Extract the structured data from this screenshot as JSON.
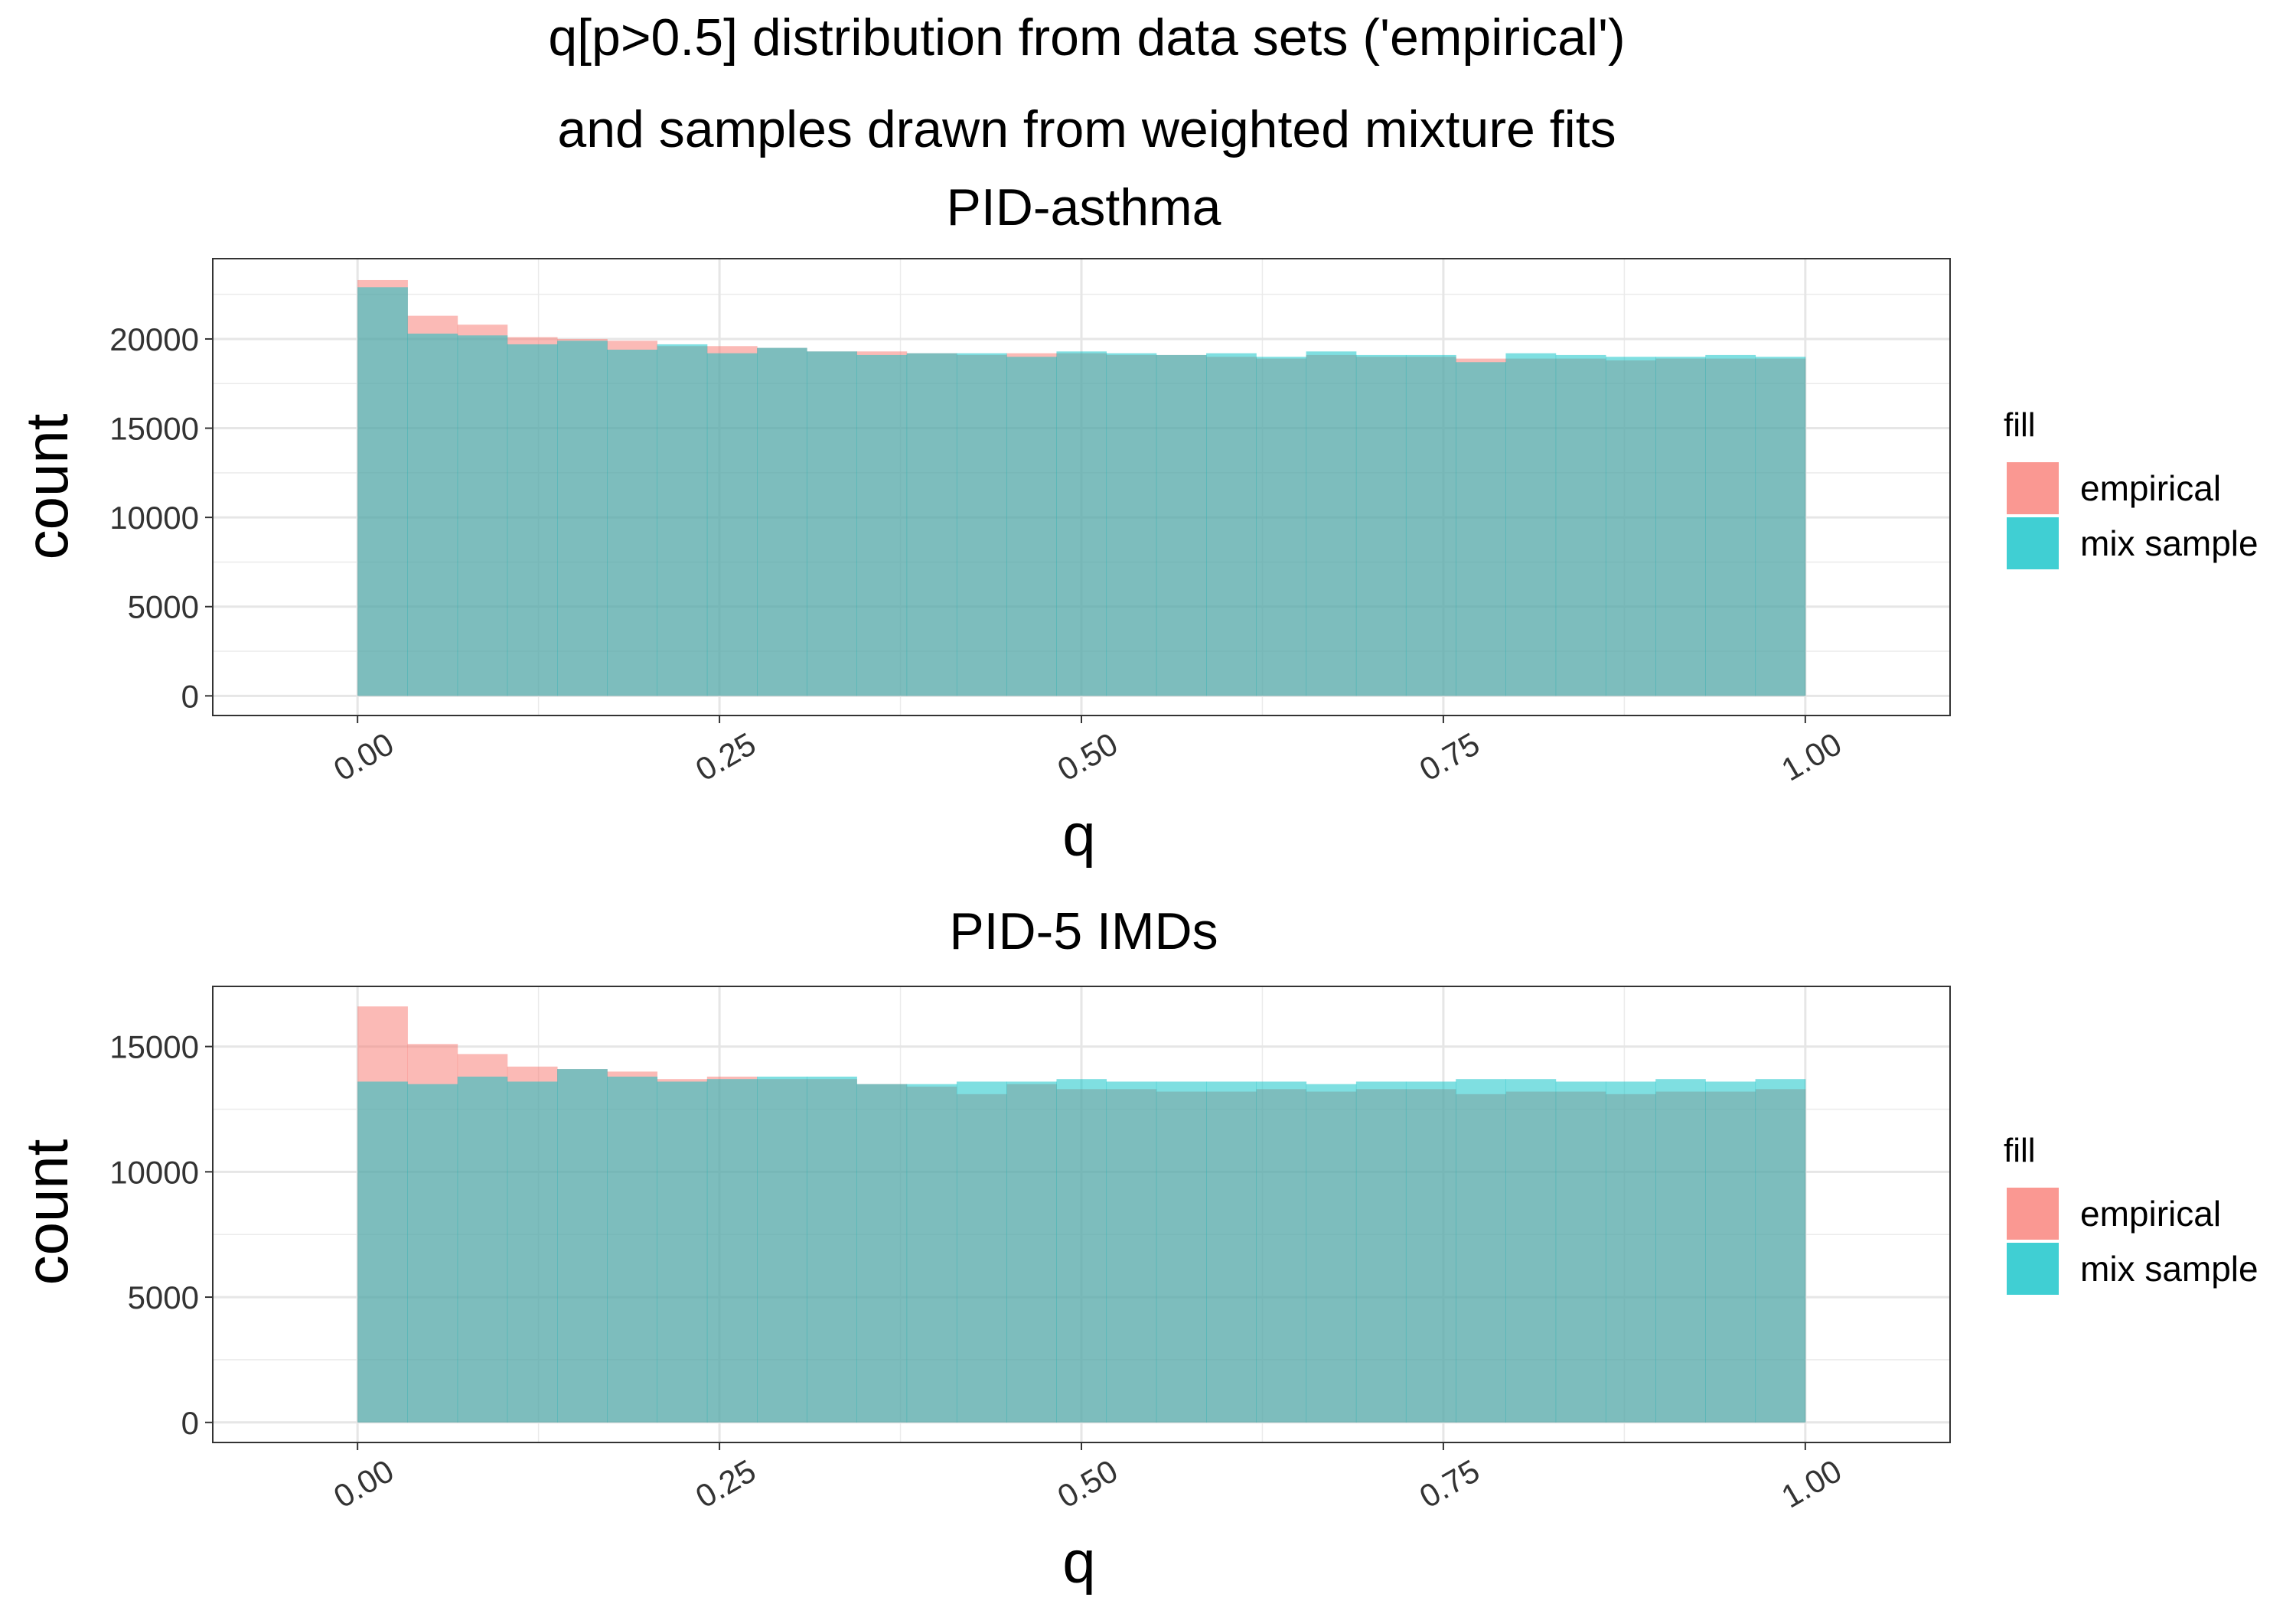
{
  "figure": {
    "title_line1": "q[p>0.5] distribution from data sets ('empirical')",
    "title_line2": "and samples drawn from weighted mixture fits"
  },
  "colors": {
    "empirical": "#F8766D",
    "mix_sample": "#00BFC4"
  },
  "chart_data": [
    {
      "type": "bar",
      "title": "PID-asthma",
      "xlabel": "q",
      "ylabel": "count",
      "xlim": [
        -0.1,
        1.1
      ],
      "ylim": [
        -1100,
        24500
      ],
      "x_ticks": [
        "0.00",
        "0.25",
        "0.50",
        "0.75",
        "1.00"
      ],
      "y_ticks": [
        "0",
        "5000",
        "10000",
        "15000",
        "20000"
      ],
      "bin_edges": [
        0,
        0.0345,
        0.069,
        0.1034,
        0.1379,
        0.1724,
        0.2069,
        0.2414,
        0.2759,
        0.3103,
        0.3448,
        0.3793,
        0.4138,
        0.4483,
        0.4828,
        0.5172,
        0.5517,
        0.5862,
        0.6207,
        0.6552,
        0.6897,
        0.7241,
        0.7586,
        0.7931,
        0.8276,
        0.8621,
        0.8966,
        0.931,
        0.9655,
        1.0
      ],
      "legend": {
        "title": "fill",
        "position": "right"
      },
      "grid": true,
      "series": [
        {
          "name": "empirical",
          "values": [
            23300,
            21300,
            20800,
            20100,
            20000,
            19900,
            19600,
            19600,
            19500,
            19300,
            19300,
            19200,
            19100,
            19200,
            19200,
            19100,
            19100,
            19000,
            18900,
            19100,
            19000,
            19000,
            18900,
            18900,
            18900,
            18800,
            18900,
            18900,
            18900,
            18900
          ]
        },
        {
          "name": "mix sample",
          "values": [
            22900,
            20300,
            20200,
            19700,
            19900,
            19400,
            19700,
            19200,
            19500,
            19300,
            19100,
            19200,
            19200,
            19000,
            19300,
            19200,
            19100,
            19200,
            19000,
            19300,
            19100,
            19100,
            18700,
            19200,
            19100,
            19000,
            19000,
            19100,
            19000,
            19000
          ]
        }
      ]
    },
    {
      "type": "bar",
      "title": "PID-5 IMDs",
      "xlabel": "q",
      "ylabel": "count",
      "xlim": [
        -0.1,
        1.1
      ],
      "ylim": [
        -800,
        17400
      ],
      "x_ticks": [
        "0.00",
        "0.25",
        "0.50",
        "0.75",
        "1.00"
      ],
      "y_ticks": [
        "0",
        "5000",
        "10000",
        "15000"
      ],
      "bin_edges": [
        0,
        0.0345,
        0.069,
        0.1034,
        0.1379,
        0.1724,
        0.2069,
        0.2414,
        0.2759,
        0.3103,
        0.3448,
        0.3793,
        0.4138,
        0.4483,
        0.4828,
        0.5172,
        0.5517,
        0.5862,
        0.6207,
        0.6552,
        0.6897,
        0.7241,
        0.7586,
        0.7931,
        0.8276,
        0.8621,
        0.8966,
        0.931,
        0.9655,
        1.0
      ],
      "legend": {
        "title": "fill",
        "position": "right"
      },
      "grid": true,
      "series": [
        {
          "name": "empirical",
          "values": [
            16600,
            15100,
            14700,
            14200,
            14100,
            14000,
            13700,
            13800,
            13700,
            13700,
            13500,
            13400,
            13100,
            13500,
            13300,
            13300,
            13200,
            13200,
            13300,
            13200,
            13300,
            13300,
            13100,
            13200,
            13200,
            13100,
            13200,
            13200,
            13300,
            13200
          ]
        },
        {
          "name": "mix sample",
          "values": [
            13600,
            13500,
            13800,
            13600,
            14100,
            13800,
            13600,
            13700,
            13800,
            13800,
            13500,
            13500,
            13600,
            13600,
            13700,
            13600,
            13600,
            13600,
            13600,
            13500,
            13600,
            13600,
            13700,
            13700,
            13600,
            13600,
            13700,
            13600,
            13700,
            13700
          ]
        }
      ]
    }
  ]
}
